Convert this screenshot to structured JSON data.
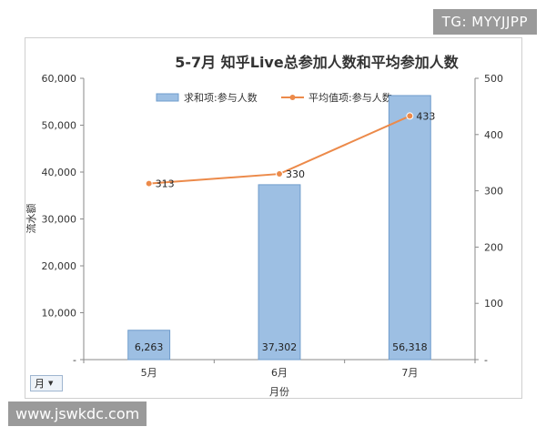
{
  "watermark_top": "TG: MYYJJPP",
  "watermark_bottom": "www.jswkdc.com",
  "filter_button": {
    "label": "月",
    "icon": "dropdown-arrow-icon"
  },
  "colors": {
    "bar": "#9dbfe3",
    "bar_edge": "#6f9ccc",
    "line": "#ec8a4a",
    "axis": "#8a8a8a"
  },
  "chart_data": {
    "type": "bar",
    "title": "5-7月 知乎Live总参加人数和平均参加人数",
    "xlabel": "月份",
    "ylabel": "流水额",
    "categories": [
      "5月",
      "6月",
      "7月"
    ],
    "ylim": [
      0,
      60000
    ],
    "y2lim": [
      0,
      500
    ],
    "y_ticks": [
      "-",
      "10,000",
      "20,000",
      "30,000",
      "40,000",
      "50,000",
      "60,000"
    ],
    "y2_ticks": [
      "-",
      "100",
      "200",
      "300",
      "400",
      "500"
    ],
    "legend_position": "top",
    "grid": false,
    "series": [
      {
        "name": "求和项:参与人数",
        "type": "bar",
        "axis": "left",
        "values": [
          6263,
          37302,
          56318
        ],
        "labels": [
          "6,263",
          "37,302",
          "56,318"
        ]
      },
      {
        "name": "平均值项:参与人数",
        "type": "line",
        "axis": "right",
        "values": [
          313,
          330,
          433
        ],
        "labels": [
          "313",
          "330",
          "433"
        ]
      }
    ]
  }
}
